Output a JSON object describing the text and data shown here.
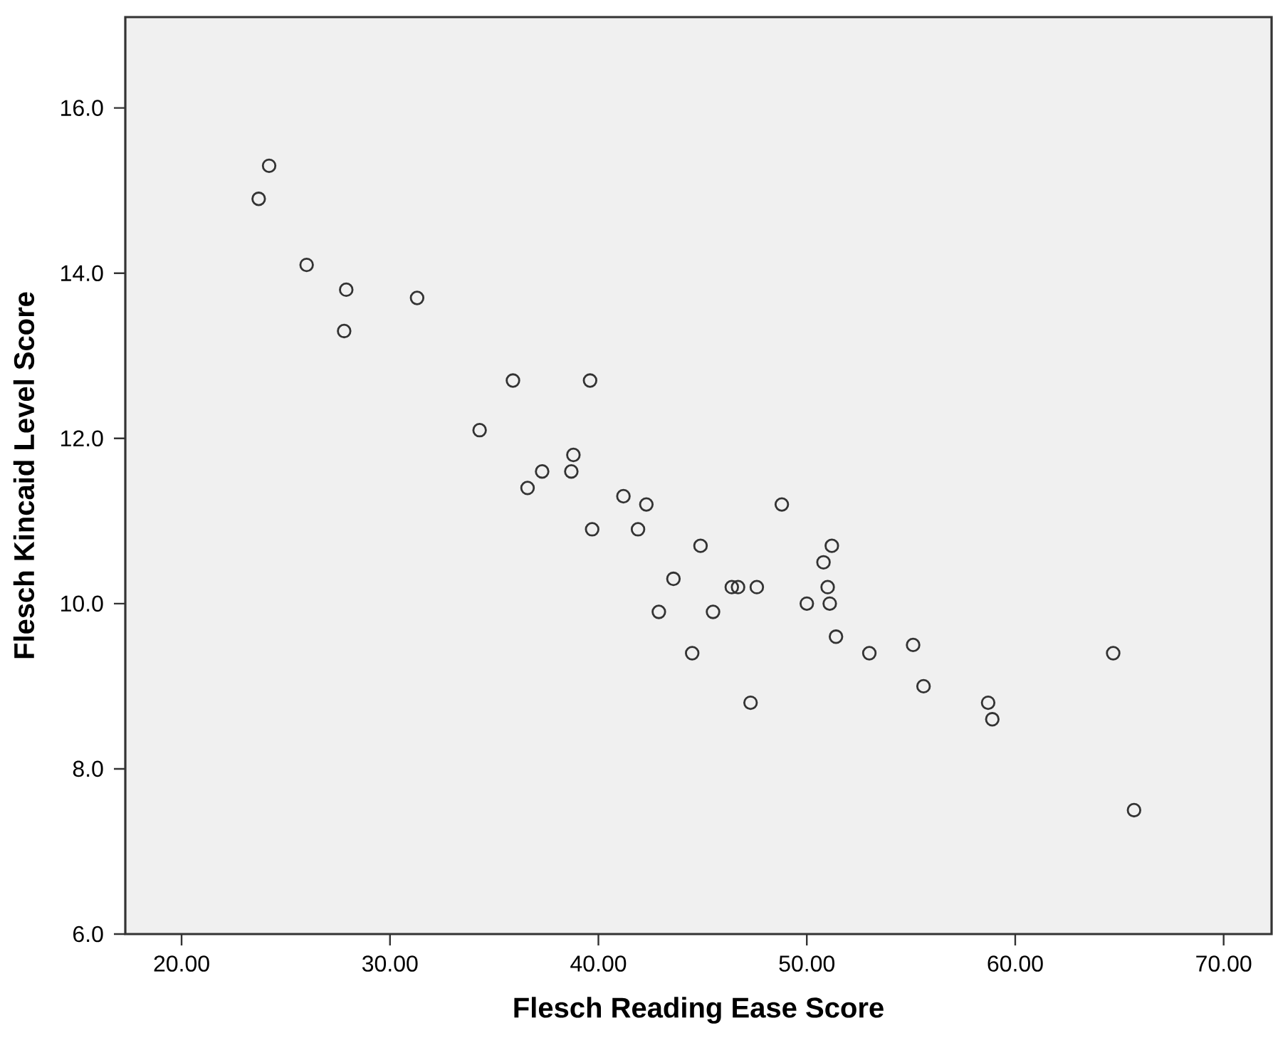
{
  "chart_data": {
    "type": "scatter",
    "xlabel": "Flesch Reading Ease Score",
    "ylabel": "Flesch Kincaid Level Score",
    "xlim": [
      17.3,
      72.3
    ],
    "ylim": [
      6.0,
      17.1
    ],
    "xticks": [
      {
        "value": 20,
        "label": "20.00"
      },
      {
        "value": 30,
        "label": "30.00"
      },
      {
        "value": 40,
        "label": "40.00"
      },
      {
        "value": 50,
        "label": "50.00"
      },
      {
        "value": 60,
        "label": "60.00"
      },
      {
        "value": 70,
        "label": "70.00"
      }
    ],
    "yticks": [
      {
        "value": 6,
        "label": "6.0"
      },
      {
        "value": 8,
        "label": "8.0"
      },
      {
        "value": 10,
        "label": "10.0"
      },
      {
        "value": 12,
        "label": "12.0"
      },
      {
        "value": 14,
        "label": "14.0"
      },
      {
        "value": 16,
        "label": "16.0"
      }
    ],
    "grid": false,
    "marker": "circle",
    "color": "#333333",
    "x": [
      24.2,
      23.7,
      26.0,
      27.9,
      27.8,
      31.3,
      35.9,
      34.3,
      38.8,
      37.3,
      38.7,
      36.6,
      39.6,
      41.2,
      42.3,
      41.9,
      39.7,
      44.9,
      43.6,
      42.9,
      44.5,
      45.5,
      46.4,
      46.7,
      47.6,
      47.3,
      48.8,
      50.0,
      51.2,
      50.8,
      51.0,
      51.1,
      51.4,
      53.0,
      55.1,
      55.6,
      58.7,
      58.9,
      64.7,
      65.7
    ],
    "values": [
      15.3,
      14.9,
      14.1,
      13.8,
      13.3,
      13.7,
      12.7,
      12.1,
      11.8,
      11.6,
      11.6,
      11.4,
      12.7,
      11.3,
      11.2,
      10.9,
      10.9,
      10.7,
      10.3,
      9.9,
      9.4,
      9.9,
      10.2,
      10.2,
      10.2,
      8.8,
      11.2,
      10.0,
      10.7,
      10.5,
      10.2,
      10.0,
      9.6,
      9.4,
      9.5,
      9.0,
      8.8,
      8.6,
      9.4,
      7.5
    ]
  }
}
